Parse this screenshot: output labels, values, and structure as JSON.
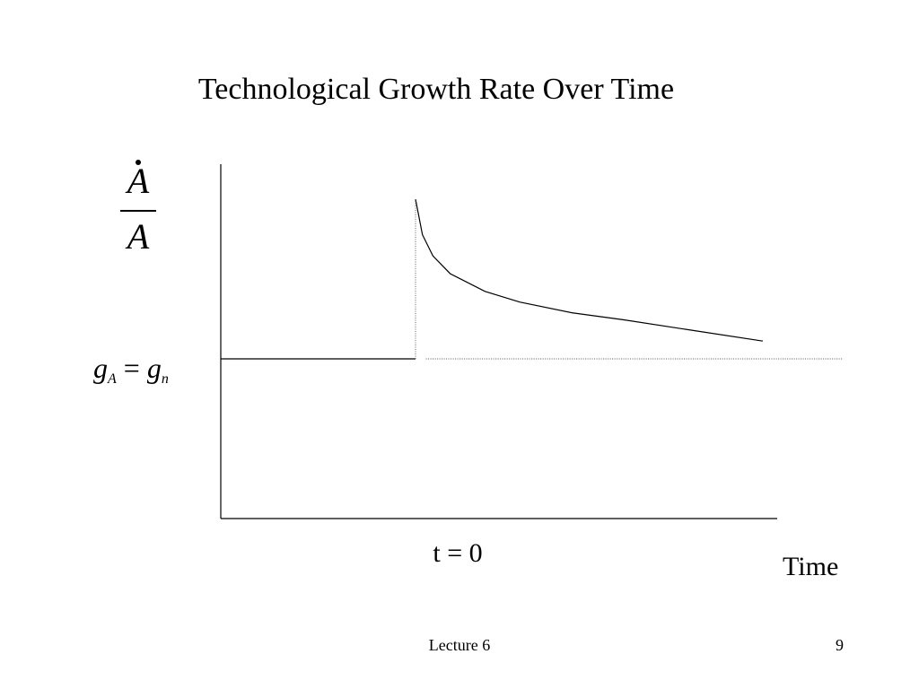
{
  "slide": {
    "title": "Technological Growth Rate Over Time",
    "footer_left": "Lecture 6",
    "page_number": "9"
  },
  "chart_data": {
    "type": "line",
    "title": "Technological Growth Rate Over Time",
    "ylabel": {
      "numerator": "A",
      "denominator": "A",
      "numerator_has_dot": true
    },
    "xlabel": "Time",
    "level_label": {
      "g_left": "g",
      "sub_left": "A",
      "equals": "=",
      "g_right": "g",
      "sub_right": "n"
    },
    "event_label": "t = 0",
    "xlim": [
      -1,
      1
    ],
    "ylim": [
      0,
      1
    ],
    "baseline_level": 0.45,
    "series": [
      {
        "style": "solid",
        "x": [
          -1,
          0
        ],
        "y": [
          0.45,
          0.45
        ]
      },
      {
        "style": "solid",
        "x": [
          0.0,
          0.02,
          0.05,
          0.1,
          0.2,
          0.3,
          0.45,
          0.6,
          0.8,
          1.0
        ],
        "y": [
          0.9,
          0.8,
          0.74,
          0.69,
          0.64,
          0.61,
          0.58,
          0.56,
          0.53,
          0.5
        ]
      },
      {
        "style": "dotted",
        "x": [
          0,
          0
        ],
        "y": [
          0.45,
          0.9
        ]
      },
      {
        "style": "dotted",
        "x": [
          0.03,
          1.23
        ],
        "y": [
          0.45,
          0.45
        ]
      }
    ],
    "grid": false,
    "legend": "none"
  }
}
